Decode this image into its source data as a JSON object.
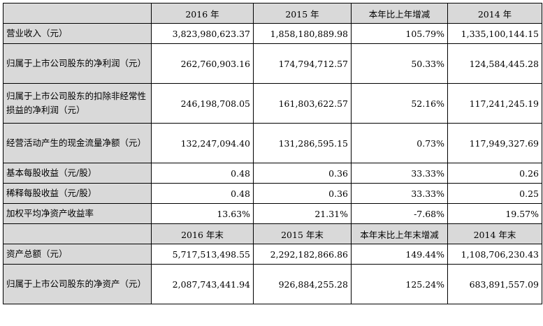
{
  "header1": [
    "",
    "2016 年",
    "2015 年",
    "本年比上年增减",
    "2014 年"
  ],
  "rows1": [
    {
      "label": "营业收入（元）",
      "values": [
        "3,823,980,623.37",
        "1,858,180,889.98",
        "105.79%",
        "1,335,100,144.15"
      ],
      "tall": false
    },
    {
      "label": "归属于上市公司股东的净利润（元）",
      "values": [
        "262,760,903.16",
        "174,794,712.57",
        "50.33%",
        "124,584,445.28"
      ],
      "tall": true
    },
    {
      "label": "归属于上市公司股东的扣除非经常性损益的净利润（元）",
      "values": [
        "246,198,708.05",
        "161,803,622.57",
        "52.16%",
        "117,241,245.19"
      ],
      "tall": true
    },
    {
      "label": "经营活动产生的现金流量净额（元）",
      "values": [
        "132,247,094.40",
        "131,286,595.15",
        "0.73%",
        "117,949,327.69"
      ],
      "tall": true
    },
    {
      "label": "基本每股收益（元/股）",
      "values": [
        "0.48",
        "0.36",
        "33.33%",
        "0.26"
      ],
      "tall": false
    },
    {
      "label": "稀释每股收益（元/股）",
      "values": [
        "0.48",
        "0.36",
        "33.33%",
        "0.25"
      ],
      "tall": false
    },
    {
      "label": "加权平均净资产收益率",
      "values": [
        "13.63%",
        "21.31%",
        "-7.68%",
        "19.57%"
      ],
      "tall": false
    }
  ],
  "header2": [
    "",
    "2016 年末",
    "2015 年末",
    "本年末比上年末增减",
    "2014 年末"
  ],
  "rows2": [
    {
      "label": "资产总额（元）",
      "values": [
        "5,717,513,498.55",
        "2,292,182,866.86",
        "149.44%",
        "1,108,706,230.43"
      ],
      "tall": false
    },
    {
      "label": "归属于上市公司股东的净资产（元）",
      "values": [
        "2,087,743,441.94",
        "926,884,255.28",
        "125.24%",
        "683,891,557.09"
      ],
      "tall": true
    }
  ]
}
